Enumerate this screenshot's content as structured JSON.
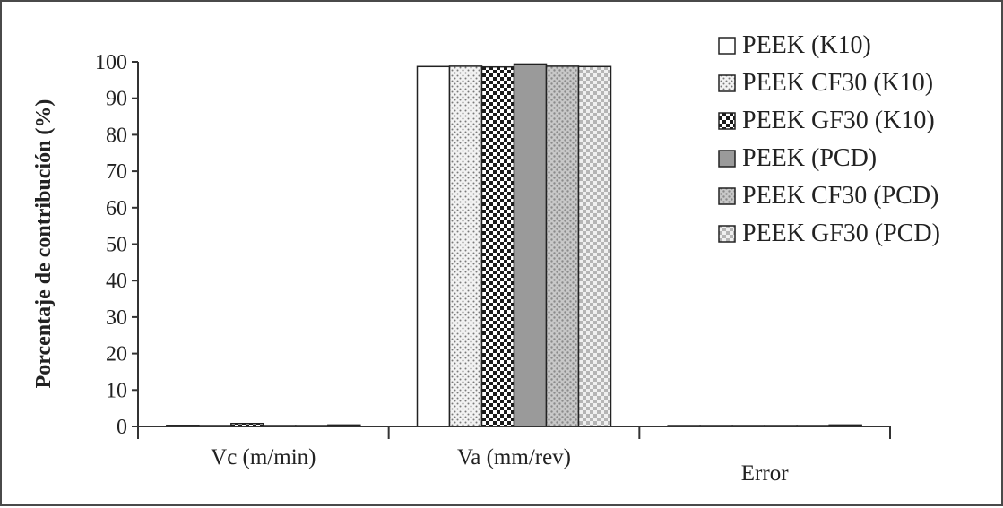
{
  "chart_data": {
    "type": "bar",
    "ylabel": "Porcentaje de contribución (%)",
    "xlabel": "",
    "ylim": [
      0,
      100
    ],
    "yticks": [
      0,
      10,
      20,
      30,
      40,
      50,
      60,
      70,
      80,
      90,
      100
    ],
    "grid": false,
    "legend_position": "right",
    "categories": [
      "Vc (m/min)",
      "Va (mm/rev)",
      "Error"
    ],
    "series": [
      {
        "name": "PEEK (K10)",
        "pattern": "white",
        "values": [
          0.3,
          98.7,
          0.1
        ]
      },
      {
        "name": "PEEK CF30 (K10)",
        "pattern": "fine-dots",
        "values": [
          0.2,
          98.8,
          0.1
        ]
      },
      {
        "name": "PEEK GF30 (K10)",
        "pattern": "checker",
        "values": [
          0.8,
          98.6,
          0.1
        ]
      },
      {
        "name": "PEEK (PCD)",
        "pattern": "solid-gray",
        "values": [
          0.1,
          99.4,
          0.1
        ]
      },
      {
        "name": "PEEK CF30 (PCD)",
        "pattern": "gray-dots",
        "values": [
          0.2,
          98.8,
          0.1
        ]
      },
      {
        "name": "PEEK GF30 (PCD)",
        "pattern": "light-checker",
        "values": [
          0.4,
          98.7,
          0.4
        ]
      }
    ],
    "colors": {
      "axis": "#333333",
      "bar_outline": "#222222",
      "solid_gray": "#9a9a9a"
    }
  }
}
